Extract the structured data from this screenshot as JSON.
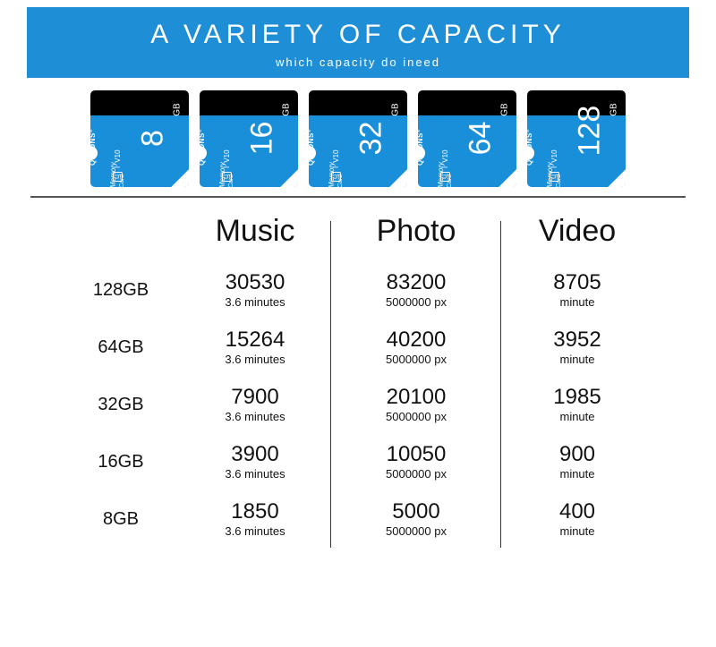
{
  "banner": {
    "title": "A VARIETY OF CAPACITY",
    "subtitle": "which capacity do ineed",
    "bg_color": "#1e8fd6",
    "text_color": "#ffffff",
    "title_fontsize": 30,
    "subtitle_fontsize": 13
  },
  "cards": {
    "brand": "QEEDNS",
    "tm": "®",
    "mem_label": "Memory",
    "card_label": "Card",
    "gb_label": "GB",
    "icons": [
      "⬚",
      "I",
      "V10"
    ],
    "top_color": "#000000",
    "body_color": "#1a8fd9",
    "capacities": [
      "8",
      "16",
      "32",
      "64",
      "128"
    ]
  },
  "table": {
    "type": "table",
    "divider_color": "#555555",
    "vline_color": "#333333",
    "head_fontsize": 34,
    "rowlabel_fontsize": 20,
    "value_fontsize": 24,
    "sub_fontsize": 13,
    "columns": [
      "Music",
      "Photo",
      "Video"
    ],
    "col_subs": [
      "3.6 minutes",
      "5000000 px",
      "minute"
    ],
    "rows": [
      {
        "label": "128GB",
        "values": [
          "30530",
          "83200",
          "8705"
        ]
      },
      {
        "label": "64GB",
        "values": [
          "15264",
          "40200",
          "3952"
        ]
      },
      {
        "label": "32GB",
        "values": [
          "7900",
          "20100",
          "1985"
        ]
      },
      {
        "label": "16GB",
        "values": [
          "3900",
          "10050",
          "900"
        ]
      },
      {
        "label": "8GB",
        "values": [
          "1850",
          "5000",
          "400"
        ]
      }
    ]
  }
}
